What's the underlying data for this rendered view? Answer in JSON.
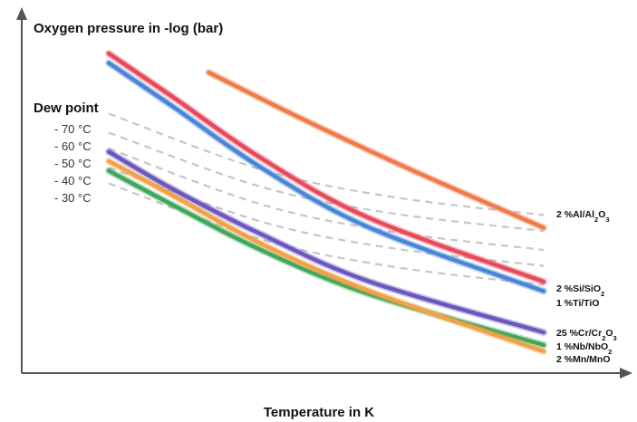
{
  "chart_data": {
    "type": "line",
    "title": "",
    "ylabel": "Oxygen pressure in -log (bar)",
    "xlabel": "Temperature in K",
    "ticks": "none",
    "grid": false,
    "dew_point": {
      "label": "Dew point",
      "ticks": [
        "- 70 °C",
        "- 60 °C",
        "- 50 °C",
        "- 40 °C",
        "- 30 °C"
      ],
      "line_style": "dashed",
      "line_color": "#c6c6c6"
    },
    "series": [
      {
        "name": "2 %Al/Al2O3",
        "label_main": "2 %Al/Al",
        "label_sub": "2",
        "label_tail": "O",
        "label_sub2": "3",
        "color": "#f07a4a",
        "values": [
          [
            0.23,
            0.9
          ],
          [
            0.45,
            0.75
          ],
          [
            0.7,
            0.59
          ],
          [
            1.0,
            0.41
          ]
        ]
      },
      {
        "name": "2 %Si/SiO2",
        "label_main": "2 %Si/SiO",
        "label_sub": "2",
        "label_tail": "",
        "label_sub2": "",
        "color": "#e8495b",
        "values": [
          [
            0.0,
            0.96
          ],
          [
            0.15,
            0.82
          ],
          [
            0.35,
            0.63
          ],
          [
            0.6,
            0.44
          ],
          [
            1.0,
            0.24
          ]
        ]
      },
      {
        "name": "1 %Ti/TiO",
        "label_main": "1 %Ti/TiO",
        "label_sub": "",
        "label_tail": "",
        "label_sub2": "",
        "color": "#4a86d6",
        "values": [
          [
            0.0,
            0.93
          ],
          [
            0.15,
            0.79
          ],
          [
            0.35,
            0.6
          ],
          [
            0.6,
            0.41
          ],
          [
            1.0,
            0.21
          ]
        ]
      },
      {
        "name": "25 %Cr/Cr2O3",
        "label_main": "25 %Cr/Cr",
        "label_sub": "2",
        "label_tail": "O",
        "label_sub2": "3",
        "color": "#6a58c0",
        "values": [
          [
            0.0,
            0.65
          ],
          [
            0.15,
            0.53
          ],
          [
            0.35,
            0.39
          ],
          [
            0.6,
            0.24
          ],
          [
            1.0,
            0.08
          ]
        ]
      },
      {
        "name": "1 %Nb/NbO2",
        "label_main": "1 %Nb/NbO",
        "label_sub": "2",
        "label_tail": "",
        "label_sub2": "",
        "color": "#40a85a",
        "values": [
          [
            0.0,
            0.59
          ],
          [
            0.15,
            0.48
          ],
          [
            0.35,
            0.34
          ],
          [
            0.6,
            0.2
          ],
          [
            1.0,
            0.04
          ]
        ]
      },
      {
        "name": "2 %Mn/MnO",
        "label_main": "2 %Mn/MnO",
        "label_sub": "",
        "label_tail": "",
        "label_sub2": "",
        "color": "#f0a24a",
        "values": [
          [
            0.0,
            0.62
          ],
          [
            0.15,
            0.51
          ],
          [
            0.35,
            0.36
          ],
          [
            0.6,
            0.21
          ],
          [
            1.0,
            0.02
          ]
        ]
      }
    ]
  }
}
